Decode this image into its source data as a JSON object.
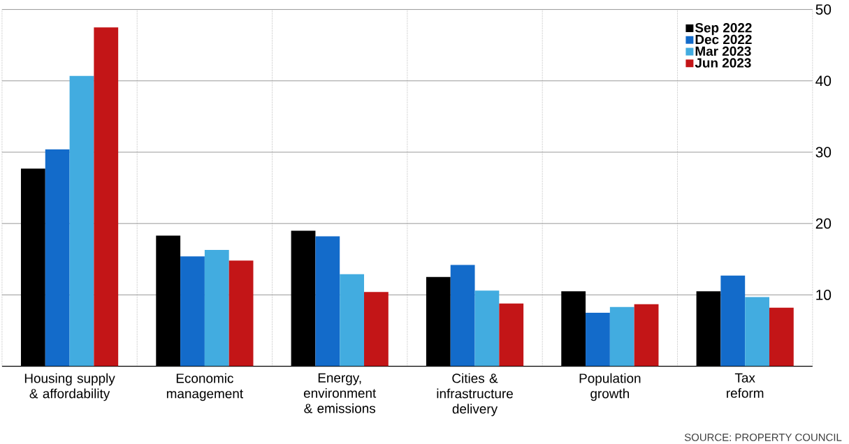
{
  "chart_data": {
    "type": "bar",
    "categories": [
      "Housing supply\n& affordability",
      "Economic\nmanagement",
      "Energy,\nenvironment\n& emissions",
      "Cities &\ninfrastructure\ndelivery",
      "Population\ngrowth",
      "Tax\nreform"
    ],
    "series": [
      {
        "name": "Sep 2022",
        "color": "#000000",
        "values": [
          27.7,
          18.3,
          19.0,
          12.5,
          10.5,
          10.5
        ]
      },
      {
        "name": "Dec 2022",
        "color": "#136bca",
        "values": [
          30.4,
          15.4,
          18.2,
          14.2,
          7.5,
          12.7
        ]
      },
      {
        "name": "Mar 2023",
        "color": "#42ace0",
        "values": [
          40.7,
          16.3,
          12.9,
          10.6,
          8.3,
          9.7
        ]
      },
      {
        "name": "Jun 2023",
        "color": "#c31517",
        "values": [
          47.5,
          14.8,
          10.4,
          8.8,
          8.7,
          8.2
        ]
      }
    ],
    "ylim": [
      0,
      50
    ],
    "yticks": [
      10,
      20,
      30,
      40,
      50
    ],
    "grid": "y",
    "legend": "top right",
    "annotations": [
      "SOURCE: PROPERTY COUNCIL"
    ]
  }
}
